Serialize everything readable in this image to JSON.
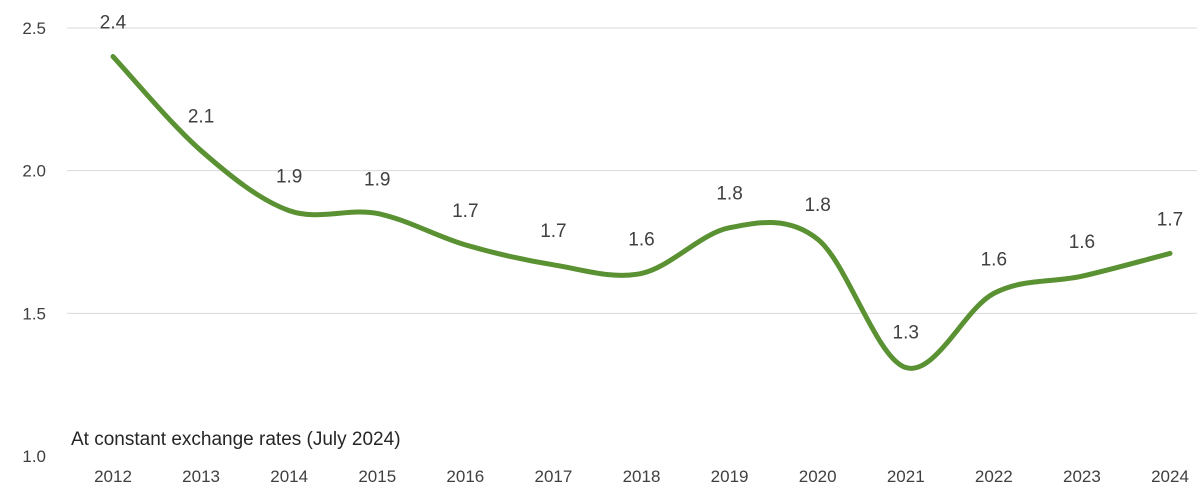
{
  "chart_data": {
    "type": "line",
    "title": "",
    "xlabel": "",
    "ylabel": "",
    "annotation": "At constant exchange rates (July 2024)",
    "categories": [
      "2012",
      "2013",
      "2014",
      "2015",
      "2016",
      "2017",
      "2018",
      "2019",
      "2020",
      "2021",
      "2022",
      "2023",
      "2024"
    ],
    "series": [
      {
        "values": [
          2.4,
          2.07,
          1.86,
          1.85,
          1.74,
          1.67,
          1.64,
          1.8,
          1.76,
          1.31,
          1.57,
          1.63,
          1.71
        ],
        "labels": [
          "2.4",
          "2.1",
          "1.9",
          "1.9",
          "1.7",
          "1.7",
          "1.6",
          "1.8",
          "1.8",
          "1.3",
          "1.6",
          "1.6",
          "1.7"
        ]
      }
    ],
    "ylim": [
      1.0,
      2.5
    ],
    "yticks": [
      "1.0",
      "1.5",
      "2.0",
      "2.5"
    ],
    "ytick_values": [
      1.0,
      1.5,
      2.0,
      2.5
    ],
    "grid": true,
    "smooth": true,
    "legend": "none",
    "colors": {
      "line": "#5a9132",
      "grid": "#d9d9d9",
      "text": "#404040"
    }
  }
}
